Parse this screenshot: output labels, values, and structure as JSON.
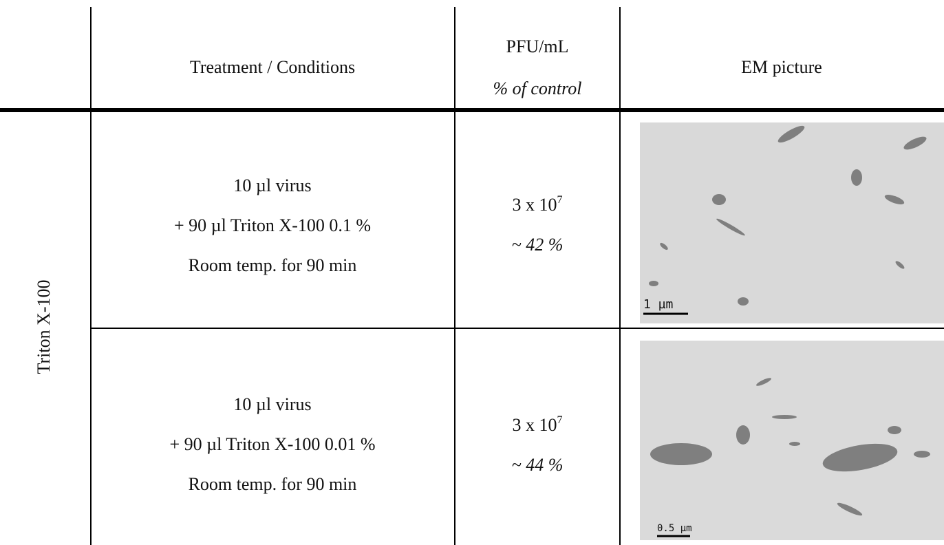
{
  "table": {
    "header": {
      "treatment": "Treatment / Conditions",
      "pfu": "PFU/mL",
      "pfu_sub": "% of control",
      "em": "EM picture"
    },
    "group_label": "Triton X-100",
    "rows": [
      {
        "conditions": [
          "10 µl virus",
          "+ 90 µl Triton X-100 0.1 %",
          "Room temp. for 90 min"
        ],
        "pfu_base": "3 x 10",
        "pfu_exp": "7",
        "percent": "~ 42 %",
        "scale_bar": "1 µm"
      },
      {
        "conditions": [
          "10 µl virus",
          "+ 90 µl Triton X-100 0.01 %",
          "Room temp. for 90 min"
        ],
        "pfu_base": "3 x 10",
        "pfu_exp": "7",
        "percent": "~ 44 %",
        "scale_bar": "0.5 µm"
      }
    ]
  }
}
